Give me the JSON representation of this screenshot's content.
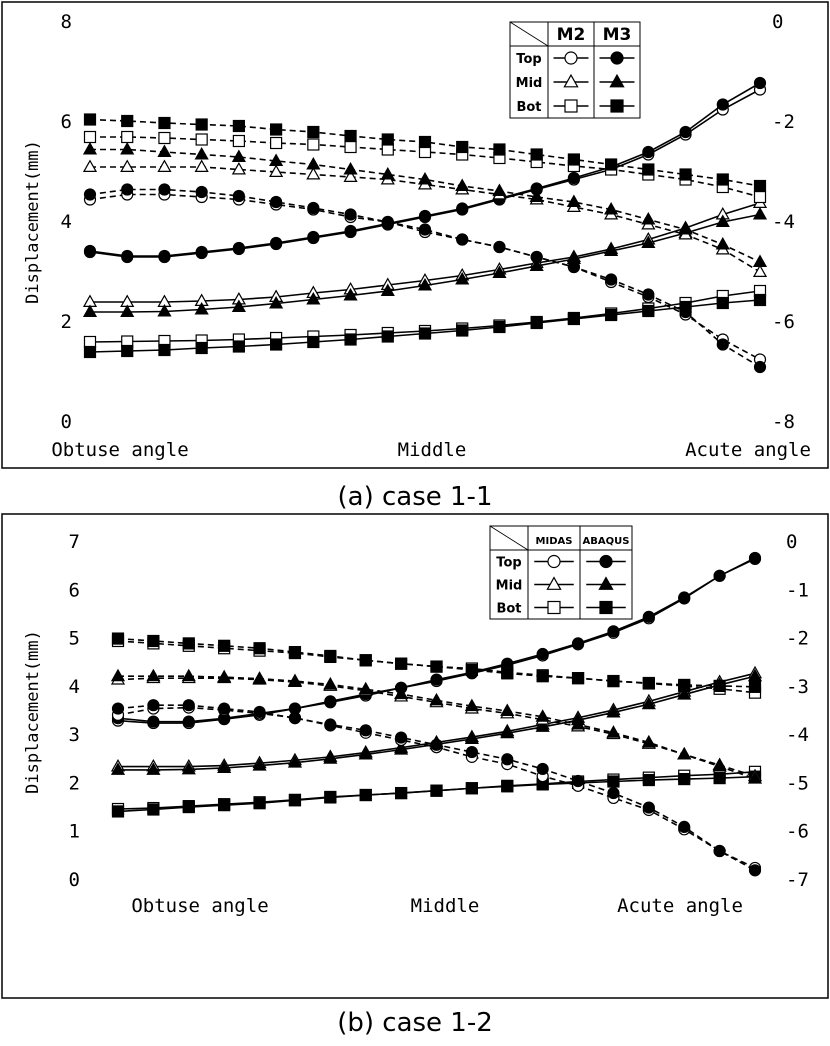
{
  "chart_data": [
    {
      "type": "line",
      "caption": "(a) case 1-1",
      "ylabel": "Displacement(mm)",
      "ylim_left": [
        0,
        8
      ],
      "yticks_left": [
        0,
        2,
        4,
        6,
        8
      ],
      "ylim_right": [
        -8,
        0
      ],
      "yticks_right": [
        -8,
        -6,
        -4,
        -2,
        0
      ],
      "xtick_labels": [
        "Obtuse angle",
        "Middle",
        "Acute angle"
      ],
      "legend": {
        "columns": [
          "M2",
          "M3"
        ],
        "rows": [
          "Top",
          "Mid",
          "Bot"
        ],
        "row_markers": [
          "circle",
          "triangle",
          "square"
        ],
        "column_fill": [
          "open",
          "filled"
        ]
      },
      "series": [
        {
          "legend": "Top",
          "model": "M2",
          "axis": "left",
          "values": [
            3.4,
            3.3,
            3.3,
            3.38,
            3.46,
            3.56,
            3.68,
            3.8,
            3.95,
            4.1,
            4.25,
            4.45,
            4.65,
            4.85,
            5.05,
            5.35,
            5.75,
            6.25,
            6.65
          ]
        },
        {
          "legend": "Top",
          "model": "M3",
          "axis": "left",
          "values": [
            3.42,
            3.32,
            3.32,
            3.4,
            3.48,
            3.58,
            3.7,
            3.82,
            3.97,
            4.12,
            4.27,
            4.47,
            4.67,
            4.88,
            5.1,
            5.4,
            5.8,
            6.35,
            6.78
          ]
        },
        {
          "legend": "Mid",
          "model": "M2",
          "axis": "left",
          "values": [
            2.4,
            2.4,
            2.4,
            2.42,
            2.45,
            2.5,
            2.58,
            2.65,
            2.74,
            2.83,
            2.93,
            3.05,
            3.18,
            3.3,
            3.46,
            3.65,
            3.88,
            4.15,
            4.38
          ]
        },
        {
          "legend": "Mid",
          "model": "M3",
          "axis": "left",
          "values": [
            2.2,
            2.2,
            2.21,
            2.25,
            2.3,
            2.37,
            2.45,
            2.53,
            2.62,
            2.73,
            2.85,
            2.98,
            3.12,
            3.26,
            3.42,
            3.58,
            3.78,
            4.0,
            4.15
          ]
        },
        {
          "legend": "Bot",
          "model": "M2",
          "axis": "left",
          "values": [
            1.6,
            1.61,
            1.62,
            1.63,
            1.65,
            1.68,
            1.71,
            1.74,
            1.78,
            1.82,
            1.87,
            1.93,
            2.0,
            2.08,
            2.17,
            2.27,
            2.38,
            2.52,
            2.62
          ]
        },
        {
          "legend": "Bot",
          "model": "M3",
          "axis": "left",
          "values": [
            1.4,
            1.42,
            1.44,
            1.48,
            1.51,
            1.55,
            1.6,
            1.65,
            1.71,
            1.77,
            1.83,
            1.9,
            1.98,
            2.06,
            2.14,
            2.22,
            2.3,
            2.38,
            2.44
          ]
        },
        {
          "legend": "Top",
          "model": "M2",
          "axis": "right",
          "values": [
            -3.55,
            -3.45,
            -3.45,
            -3.5,
            -3.55,
            -3.65,
            -3.75,
            -3.9,
            -4.0,
            -4.2,
            -4.35,
            -4.5,
            -4.7,
            -4.9,
            -5.2,
            -5.5,
            -5.85,
            -6.35,
            -6.75
          ]
        },
        {
          "legend": "Top",
          "model": "M3",
          "axis": "right",
          "values": [
            -3.45,
            -3.35,
            -3.35,
            -3.4,
            -3.48,
            -3.6,
            -3.72,
            -3.85,
            -4.0,
            -4.15,
            -4.35,
            -4.5,
            -4.7,
            -4.9,
            -5.15,
            -5.45,
            -5.8,
            -6.45,
            -6.9
          ]
        },
        {
          "legend": "Mid",
          "model": "M2",
          "axis": "right",
          "values": [
            -2.9,
            -2.9,
            -2.9,
            -2.9,
            -2.95,
            -3.0,
            -3.05,
            -3.1,
            -3.15,
            -3.25,
            -3.35,
            -3.45,
            -3.55,
            -3.7,
            -3.85,
            -4.05,
            -4.25,
            -4.55,
            -5.0
          ]
        },
        {
          "legend": "Mid",
          "model": "M3",
          "axis": "right",
          "values": [
            -2.55,
            -2.55,
            -2.6,
            -2.65,
            -2.7,
            -2.78,
            -2.85,
            -2.95,
            -3.05,
            -3.15,
            -3.28,
            -3.38,
            -3.5,
            -3.6,
            -3.75,
            -3.95,
            -4.15,
            -4.45,
            -4.8
          ]
        },
        {
          "legend": "Bot",
          "model": "M2",
          "axis": "right",
          "values": [
            -2.3,
            -2.3,
            -2.32,
            -2.35,
            -2.38,
            -2.42,
            -2.45,
            -2.5,
            -2.55,
            -2.6,
            -2.65,
            -2.72,
            -2.8,
            -2.88,
            -2.95,
            -3.05,
            -3.15,
            -3.3,
            -3.5
          ]
        },
        {
          "legend": "Bot",
          "model": "M3",
          "axis": "right",
          "values": [
            -1.95,
            -1.98,
            -2.02,
            -2.05,
            -2.08,
            -2.15,
            -2.2,
            -2.28,
            -2.35,
            -2.4,
            -2.5,
            -2.55,
            -2.65,
            -2.75,
            -2.85,
            -2.95,
            -3.05,
            -3.15,
            -3.28
          ]
        }
      ]
    },
    {
      "type": "line",
      "caption": "(b) case 1-2",
      "ylabel": "Displacement(mm)",
      "ylim_left": [
        0,
        7
      ],
      "yticks_left": [
        0,
        1,
        2,
        3,
        4,
        5,
        6,
        7
      ],
      "ylim_right": [
        -7,
        0
      ],
      "yticks_right": [
        -7,
        -6,
        -5,
        -4,
        -3,
        -2,
        -1,
        0
      ],
      "xtick_labels": [
        "Obtuse angle",
        "Middle",
        "Acute angle"
      ],
      "legend": {
        "columns": [
          "MIDAS",
          "ABAQUS"
        ],
        "rows": [
          "Top",
          "Mid",
          "Bot"
        ],
        "row_markers": [
          "circle",
          "triangle",
          "square"
        ],
        "column_fill": [
          "open",
          "filled"
        ]
      },
      "series": [
        {
          "legend": "Top",
          "model": "MIDAS",
          "axis": "left",
          "values": [
            3.3,
            3.25,
            3.25,
            3.33,
            3.42,
            3.55,
            3.68,
            3.82,
            3.98,
            4.12,
            4.28,
            4.45,
            4.65,
            4.88,
            5.12,
            5.42,
            5.83,
            6.3,
            6.65
          ]
        },
        {
          "legend": "Top",
          "model": "ABAQUS",
          "axis": "left",
          "values": [
            3.35,
            3.28,
            3.28,
            3.35,
            3.45,
            3.55,
            3.7,
            3.85,
            3.98,
            4.15,
            4.3,
            4.48,
            4.68,
            4.9,
            5.15,
            5.45,
            5.85,
            6.3,
            6.67
          ]
        },
        {
          "legend": "Mid",
          "model": "MIDAS",
          "axis": "left",
          "values": [
            2.35,
            2.35,
            2.35,
            2.37,
            2.42,
            2.48,
            2.55,
            2.64,
            2.74,
            2.85,
            2.96,
            3.08,
            3.22,
            3.36,
            3.52,
            3.7,
            3.9,
            4.1,
            4.28
          ]
        },
        {
          "legend": "Mid",
          "model": "ABAQUS",
          "axis": "left",
          "values": [
            2.28,
            2.28,
            2.29,
            2.32,
            2.37,
            2.43,
            2.51,
            2.6,
            2.7,
            2.81,
            2.92,
            3.04,
            3.17,
            3.31,
            3.47,
            3.64,
            3.84,
            4.04,
            4.22
          ]
        },
        {
          "legend": "Bot",
          "model": "MIDAS",
          "axis": "left",
          "values": [
            1.47,
            1.49,
            1.53,
            1.57,
            1.61,
            1.66,
            1.72,
            1.76,
            1.8,
            1.85,
            1.9,
            1.95,
            1.99,
            2.04,
            2.08,
            2.12,
            2.16,
            2.19,
            2.24
          ]
        },
        {
          "legend": "Bot",
          "model": "ABAQUS",
          "axis": "left",
          "values": [
            1.42,
            1.46,
            1.51,
            1.55,
            1.59,
            1.65,
            1.71,
            1.76,
            1.8,
            1.85,
            1.9,
            1.94,
            1.98,
            2.01,
            2.04,
            2.07,
            2.09,
            2.11,
            2.14
          ]
        },
        {
          "legend": "Top",
          "model": "MIDAS",
          "axis": "right",
          "values": [
            -3.58,
            -3.45,
            -3.43,
            -3.48,
            -3.55,
            -3.64,
            -3.8,
            -3.95,
            -4.1,
            -4.25,
            -4.45,
            -4.6,
            -4.85,
            -5.05,
            -5.3,
            -5.55,
            -5.95,
            -6.4,
            -6.75
          ]
        },
        {
          "legend": "Top",
          "model": "ABAQUS",
          "axis": "right",
          "values": [
            -3.45,
            -3.38,
            -3.38,
            -3.45,
            -3.52,
            -3.65,
            -3.78,
            -3.9,
            -4.05,
            -4.2,
            -4.35,
            -4.5,
            -4.7,
            -4.95,
            -5.2,
            -5.5,
            -5.9,
            -6.4,
            -6.8
          ]
        },
        {
          "legend": "Mid",
          "model": "MIDAS",
          "axis": "right",
          "values": [
            -2.85,
            -2.82,
            -2.82,
            -2.82,
            -2.85,
            -2.9,
            -2.98,
            -3.08,
            -3.2,
            -3.32,
            -3.45,
            -3.55,
            -3.68,
            -3.82,
            -3.98,
            -4.18,
            -4.4,
            -4.62,
            -4.85
          ]
        },
        {
          "legend": "Mid",
          "model": "ABAQUS",
          "axis": "right",
          "values": [
            -2.78,
            -2.78,
            -2.78,
            -2.8,
            -2.83,
            -2.88,
            -2.95,
            -3.05,
            -3.15,
            -3.28,
            -3.4,
            -3.5,
            -3.62,
            -3.78,
            -3.95,
            -4.15,
            -4.4,
            -4.65,
            -4.9
          ]
        },
        {
          "legend": "Bot",
          "model": "MIDAS",
          "axis": "right",
          "values": [
            -2.05,
            -2.1,
            -2.15,
            -2.2,
            -2.25,
            -2.3,
            -2.38,
            -2.45,
            -2.52,
            -2.58,
            -2.62,
            -2.7,
            -2.76,
            -2.82,
            -2.88,
            -2.93,
            -2.98,
            -3.04,
            -3.12
          ]
        },
        {
          "legend": "Bot",
          "model": "ABAQUS",
          "axis": "right",
          "values": [
            -2.0,
            -2.05,
            -2.1,
            -2.15,
            -2.2,
            -2.28,
            -2.36,
            -2.45,
            -2.52,
            -2.58,
            -2.65,
            -2.72,
            -2.78,
            -2.82,
            -2.88,
            -2.92,
            -2.96,
            -2.98,
            -3.0
          ]
        }
      ]
    }
  ],
  "icons": {
    "legend_corner": "diagonal-slash-icon"
  }
}
